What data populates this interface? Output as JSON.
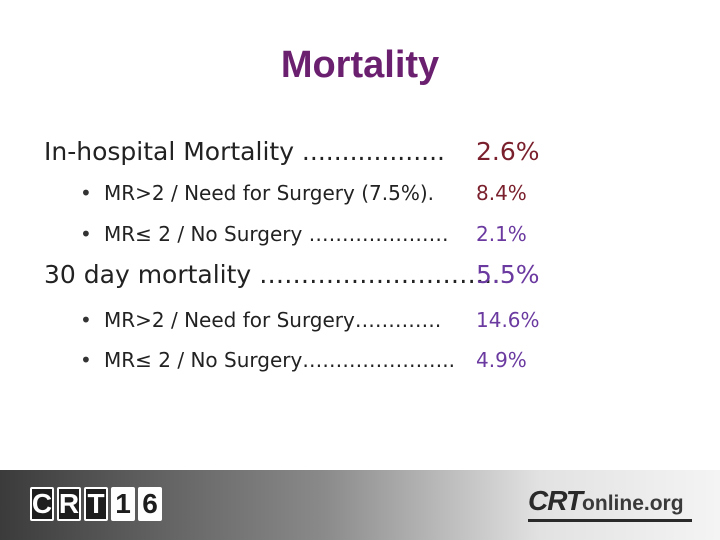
{
  "title": "Mortality",
  "sections": [
    {
      "label": "In-hospital Mortality  ..................",
      "value": "2.6%",
      "items": [
        {
          "label": "MR>2 / Need for Surgery (7.5%).",
          "value": "8.4%"
        },
        {
          "label": "MR≤ 2 / No Surgery …………………",
          "value": "2.1%"
        }
      ]
    },
    {
      "label": "30 day mortality ………………………..",
      "value": "5.5%",
      "items": [
        {
          "label": "MR>2 / Need for Surgery………….",
          "value": "14.6%"
        },
        {
          "label": "MR≤ 2 / No Surgery…………………..",
          "value": "4.9%"
        }
      ]
    }
  ],
  "bullet_glyph": "•",
  "footer": {
    "crt_logo_chars": [
      "C",
      "R",
      "T",
      "1",
      "6"
    ],
    "online_logo_crt": "CRT",
    "online_logo_rest": "online.org"
  },
  "colors": {
    "title": "#6b1f6f",
    "value_main": "#7a1f2c",
    "value_sub": "#6b3aa0"
  }
}
